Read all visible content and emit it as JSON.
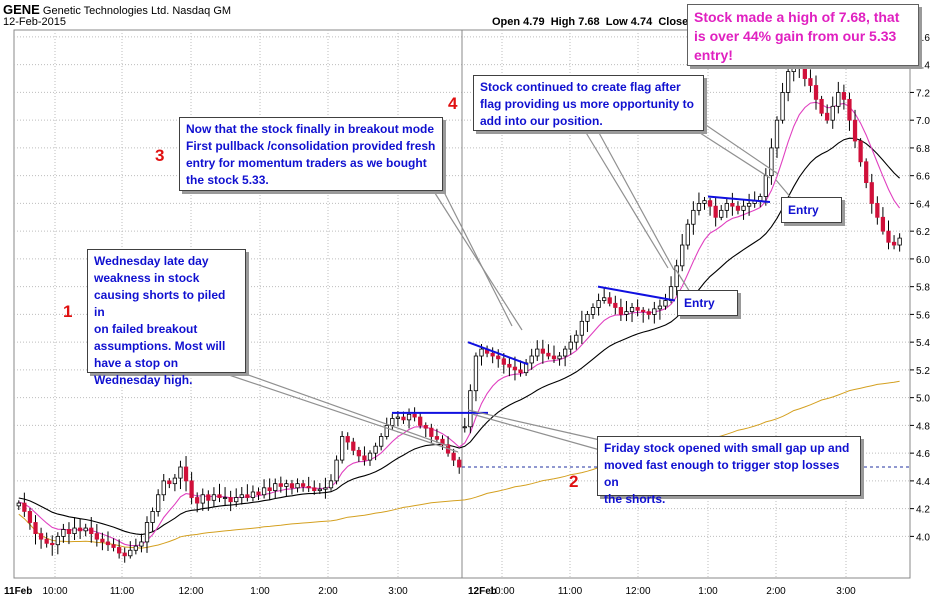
{
  "chart_data": {
    "type": "candlestick",
    "title": {
      "symbol": "GENE",
      "name": "Genetic Technologies Ltd.",
      "exchange": "Nasdaq GM",
      "date": "12-Feb-2015"
    },
    "ohlc_labels": {
      "open": "Open 4.79",
      "high": "High 7.68",
      "low": "Low 4.74",
      "close": "Close"
    },
    "y_axis": {
      "side": "right",
      "min": 3.7,
      "max": 7.65,
      "ticks": [
        4.0,
        4.2,
        4.4,
        4.6,
        4.8,
        5.0,
        5.2,
        5.4,
        5.6,
        5.8,
        6.0,
        6.2,
        6.4,
        6.6,
        6.8,
        7.0,
        7.2,
        7.4,
        7.6
      ],
      "tick_labels": [
        "4.0",
        "4.2",
        "4.4",
        "4.6",
        "4.8",
        "5.0",
        "5.2",
        "5.4",
        "5.6",
        "5.8",
        "6.0",
        "6.2",
        "6.4",
        "6.6",
        "6.8",
        "7.0",
        "7.2",
        "7.4",
        "7.6"
      ]
    },
    "x_axis": {
      "sessions": [
        {
          "label": "11Feb",
          "times": [
            "10:00",
            "11:00",
            "12:00",
            "1:00",
            "2:00",
            "3:00"
          ]
        },
        {
          "label": "12Feb",
          "times": [
            "10:00",
            "11:00",
            "12:00",
            "1:00",
            "2:00",
            "3:00"
          ]
        }
      ]
    },
    "colors": {
      "up": "#ffffff",
      "down": "#d0103a",
      "ema_fast": "#e040c0",
      "ema_slow": "#000000",
      "vwap": "#d4a020",
      "trendline": "#1010e0",
      "ref_line": "#2030a0",
      "grid": "#bdbdbd"
    },
    "series": [
      {
        "name": "candles_day1_closes",
        "values": [
          4.24,
          4.18,
          4.1,
          4.02,
          3.98,
          3.95,
          3.94,
          4.0,
          4.05,
          4.02,
          4.06,
          4.04,
          4.06,
          4.02,
          3.98,
          3.96,
          3.94,
          3.92,
          3.88,
          3.86,
          3.9,
          3.93,
          3.96,
          4.1,
          4.18,
          4.3,
          4.4,
          4.38,
          4.42,
          4.5,
          4.4,
          4.28,
          4.24,
          4.3,
          4.26,
          4.3,
          4.28,
          4.28,
          4.25,
          4.28,
          4.3,
          4.28,
          4.32,
          4.3,
          4.35,
          4.33,
          4.38,
          4.36,
          4.38,
          4.35,
          4.38,
          4.36,
          4.35,
          4.33,
          4.34,
          4.35,
          4.4,
          4.55,
          4.72,
          4.68,
          4.62,
          4.58,
          4.55,
          4.6,
          4.65,
          4.72,
          4.8,
          4.85,
          4.86,
          4.84,
          4.88,
          4.86,
          4.8,
          4.78,
          4.72,
          4.7,
          4.66,
          4.6,
          4.55,
          4.5
        ]
      },
      {
        "name": "candles_day2_closes",
        "values": [
          4.79,
          5.05,
          5.3,
          5.35,
          5.32,
          5.3,
          5.28,
          5.24,
          5.22,
          5.2,
          5.18,
          5.25,
          5.3,
          5.35,
          5.32,
          5.3,
          5.28,
          5.3,
          5.35,
          5.4,
          5.45,
          5.55,
          5.6,
          5.65,
          5.7,
          5.72,
          5.68,
          5.65,
          5.6,
          5.62,
          5.65,
          5.63,
          5.62,
          5.6,
          5.64,
          5.66,
          5.7,
          5.8,
          5.95,
          6.1,
          6.25,
          6.35,
          6.4,
          6.42,
          6.38,
          6.3,
          6.35,
          6.4,
          6.38,
          6.35,
          6.38,
          6.4,
          6.42,
          6.45,
          6.6,
          6.8,
          7.0,
          7.2,
          7.35,
          7.4,
          7.38,
          7.3,
          7.25,
          7.15,
          7.05,
          7.0,
          7.1,
          7.2,
          7.15,
          7.0,
          6.85,
          6.7,
          6.55,
          6.4,
          6.3,
          6.2,
          6.12,
          6.1,
          6.15
        ]
      },
      {
        "name": "ema_fast",
        "values": []
      },
      {
        "name": "ema_slow",
        "values": []
      },
      {
        "name": "vwap",
        "values": []
      }
    ],
    "reference_line": {
      "price": 4.5,
      "style": "dashed"
    },
    "trendlines": [
      {
        "label": "wednesday-high",
        "from": [
          "11Feb 2:55",
          4.89
        ],
        "to": [
          "12Feb 10:15",
          4.89
        ]
      },
      {
        "label": "flag-1",
        "from": [
          "12Feb 9:35",
          5.4
        ],
        "to": [
          "12Feb 10:05",
          5.24
        ]
      },
      {
        "label": "flag-2",
        "from": [
          "12Feb 11:25",
          5.8
        ],
        "to": [
          "12Feb 12:30",
          5.7
        ]
      },
      {
        "label": "flag-3",
        "from": [
          "12Feb 1:00",
          6.45
        ],
        "to": [
          "12Feb 1:55",
          6.41
        ]
      }
    ]
  },
  "annotations": {
    "n1": "1",
    "n2": "2",
    "n3": "3",
    "n4": "4",
    "c1": "Wednesday late day\nweakness in stock\ncausing  shorts to  piled in\non failed breakout\nassumptions. Most will\nhave a stop on\nWednesday  high.",
    "c2": "Friday stock opened with small gap up and\nmoved fast enough to trigger stop losses on\nthe shorts.",
    "c3": "Now that the stock finally in breakout mode\nFirst pullback /consolidation provided  fresh\nentry for momentum traders as we bought\nthe stock 5.33.",
    "c4": "Stock continued to create flag after\nflag providing us more opportunity to\nadd into our position.",
    "c5": "Stock made a high of 7.68, that\nis over 44% gain from our 5.33\nentry!",
    "entry1": "Entry",
    "entry2": "Entry"
  }
}
